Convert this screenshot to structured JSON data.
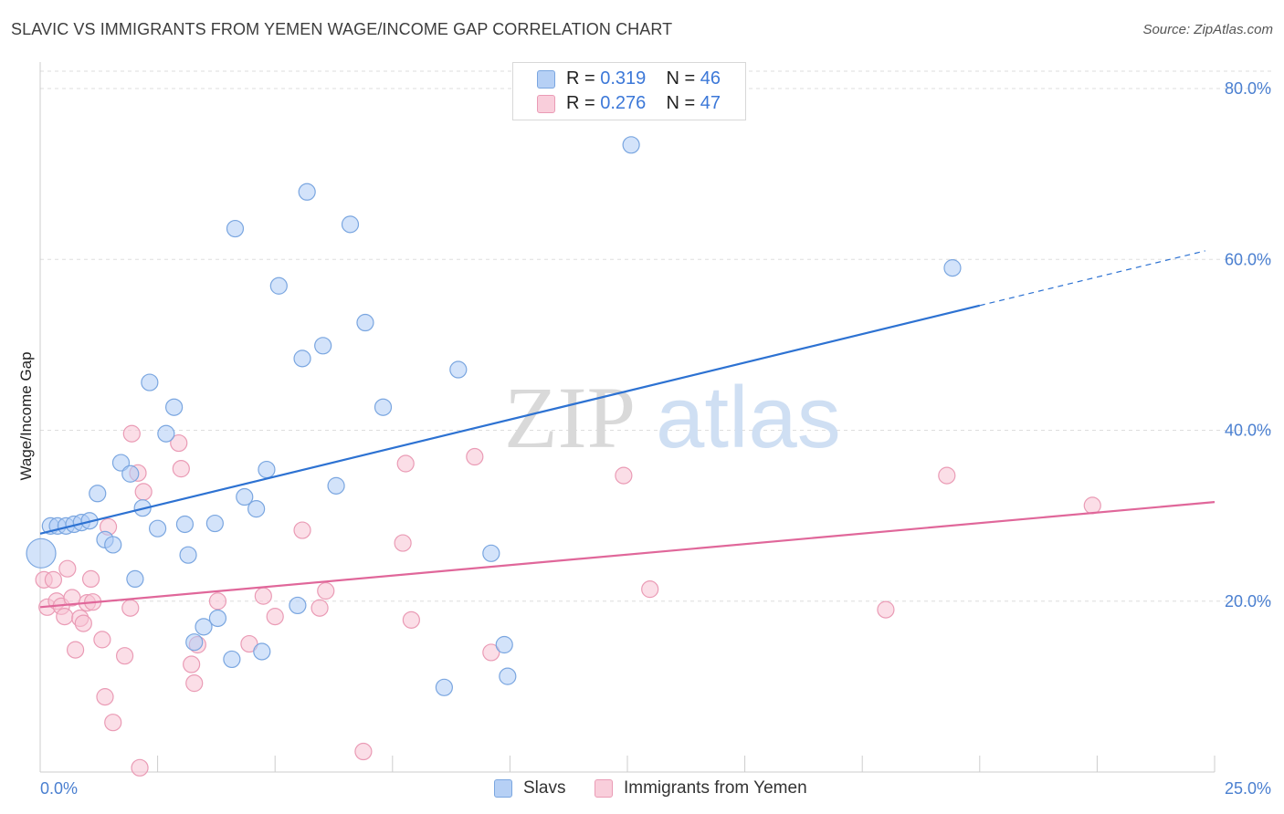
{
  "title": "SLAVIC VS IMMIGRANTS FROM YEMEN WAGE/INCOME GAP CORRELATION CHART",
  "source": "Source: ZipAtlas.com",
  "watermark": {
    "zip": "ZIP",
    "atlas": "atlas"
  },
  "colors": {
    "slavs_fill": "#aeccf5",
    "slavs_stroke": "#7aa6e0",
    "slavs_line": "#2d72d2",
    "yemen_fill": "#f7c3d3",
    "yemen_stroke": "#ea9bb5",
    "yemen_line": "#e0679a",
    "tick_text": "#4a7fd0",
    "grid": "#dddddd"
  },
  "legend_top": {
    "row1": {
      "r_label": "R =",
      "r_value": "0.319",
      "n_label": "N =",
      "n_value": "46"
    },
    "row2": {
      "r_label": "R =",
      "r_value": "0.276",
      "n_label": "N =",
      "n_value": "47"
    }
  },
  "legend_bottom": {
    "series1": "Slavs",
    "series2": "Immigrants from Yemen"
  },
  "chart_data": {
    "type": "scatter",
    "title": "SLAVIC VS IMMIGRANTS FROM YEMEN WAGE/INCOME GAP CORRELATION CHART",
    "xlabel": "",
    "ylabel": "Wage/Income Gap",
    "xlim": [
      0,
      25
    ],
    "ylim": [
      0,
      83
    ],
    "x_tick_labels": [
      "0.0%",
      "25.0%"
    ],
    "y_ticks": [
      20,
      40,
      60,
      80
    ],
    "y_tick_labels": [
      "20.0%",
      "40.0%",
      "60.0%",
      "80.0%"
    ],
    "grid": "horizontal dashed",
    "legend_position": "top-center and bottom",
    "series": [
      {
        "name": "Slavs",
        "r": 0.319,
        "n": 46,
        "trend": {
          "x0": 0,
          "y0": 27.9,
          "x1": 20,
          "y1": 54.6,
          "dashed_to_x": 24.8,
          "dashed_to_y": 61.0
        },
        "points": [
          [
            0.02,
            25.6,
            16
          ],
          [
            0.22,
            28.8,
            9
          ],
          [
            0.37,
            28.8,
            9
          ],
          [
            0.55,
            28.8,
            9
          ],
          [
            0.72,
            29.0,
            9
          ],
          [
            0.88,
            29.2,
            9
          ],
          [
            1.05,
            29.4,
            9
          ],
          [
            1.22,
            32.6,
            9
          ],
          [
            1.38,
            27.2,
            9
          ],
          [
            1.55,
            26.6,
            9
          ],
          [
            1.72,
            36.2,
            9
          ],
          [
            1.92,
            34.9,
            9
          ],
          [
            2.02,
            22.6,
            9
          ],
          [
            2.18,
            30.9,
            9
          ],
          [
            2.33,
            45.6,
            9
          ],
          [
            2.5,
            28.5,
            9
          ],
          [
            2.68,
            39.6,
            9
          ],
          [
            2.85,
            42.7,
            9
          ],
          [
            3.08,
            29.0,
            9
          ],
          [
            3.15,
            25.4,
            9
          ],
          [
            3.28,
            15.2,
            9
          ],
          [
            3.48,
            17.0,
            9
          ],
          [
            3.72,
            29.1,
            9
          ],
          [
            3.78,
            18.0,
            9
          ],
          [
            4.08,
            13.2,
            9
          ],
          [
            4.15,
            63.6,
            9
          ],
          [
            4.35,
            32.2,
            9
          ],
          [
            4.6,
            30.8,
            9
          ],
          [
            4.72,
            14.1,
            9
          ],
          [
            4.82,
            35.4,
            9
          ],
          [
            5.08,
            56.9,
            9
          ],
          [
            5.48,
            19.5,
            9
          ],
          [
            5.58,
            48.4,
            9
          ],
          [
            5.68,
            67.9,
            9
          ],
          [
            6.02,
            49.9,
            9
          ],
          [
            6.3,
            33.5,
            9
          ],
          [
            6.6,
            64.1,
            9
          ],
          [
            6.92,
            52.6,
            9
          ],
          [
            7.3,
            42.7,
            9
          ],
          [
            8.6,
            9.9,
            9
          ],
          [
            8.9,
            47.1,
            9
          ],
          [
            9.6,
            25.6,
            9
          ],
          [
            9.88,
            14.9,
            9
          ],
          [
            9.95,
            11.2,
            9
          ],
          [
            12.58,
            73.4,
            9
          ],
          [
            19.42,
            59.0,
            9
          ]
        ]
      },
      {
        "name": "Immigrants from Yemen",
        "r": 0.276,
        "n": 47,
        "trend": {
          "x0": 0,
          "y0": 19.3,
          "x1": 25,
          "y1": 31.6
        },
        "points": [
          [
            0.08,
            22.5,
            9
          ],
          [
            0.15,
            19.3,
            9
          ],
          [
            0.28,
            22.5,
            9
          ],
          [
            0.35,
            20.0,
            9
          ],
          [
            0.45,
            19.4,
            9
          ],
          [
            0.52,
            18.2,
            9
          ],
          [
            0.58,
            23.8,
            9
          ],
          [
            0.68,
            20.4,
            9
          ],
          [
            0.75,
            14.3,
            9
          ],
          [
            0.85,
            18.0,
            9
          ],
          [
            0.92,
            17.4,
            9
          ],
          [
            1.0,
            19.8,
            9
          ],
          [
            1.08,
            22.6,
            9
          ],
          [
            1.12,
            19.9,
            9
          ],
          [
            1.32,
            15.5,
            9
          ],
          [
            1.38,
            8.8,
            9
          ],
          [
            1.45,
            28.7,
            9
          ],
          [
            1.55,
            5.8,
            9
          ],
          [
            1.8,
            13.6,
            9
          ],
          [
            1.92,
            19.2,
            9
          ],
          [
            1.95,
            39.6,
            9
          ],
          [
            2.08,
            35.0,
            9
          ],
          [
            2.12,
            0.5,
            9
          ],
          [
            2.2,
            32.8,
            9
          ],
          [
            2.95,
            38.5,
            9
          ],
          [
            3.0,
            35.5,
            9
          ],
          [
            3.22,
            12.6,
            9
          ],
          [
            3.28,
            10.4,
            9
          ],
          [
            3.35,
            14.9,
            9
          ],
          [
            3.78,
            20.0,
            9
          ],
          [
            4.45,
            15.0,
            9
          ],
          [
            4.75,
            20.6,
            9
          ],
          [
            5.0,
            18.2,
            9
          ],
          [
            5.58,
            28.3,
            9
          ],
          [
            5.95,
            19.2,
            9
          ],
          [
            6.08,
            21.2,
            9
          ],
          [
            6.88,
            2.4,
            9
          ],
          [
            7.72,
            26.8,
            9
          ],
          [
            7.78,
            36.1,
            9
          ],
          [
            7.9,
            17.8,
            9
          ],
          [
            9.25,
            36.9,
            9
          ],
          [
            9.6,
            14.0,
            9
          ],
          [
            12.42,
            34.7,
            9
          ],
          [
            12.98,
            21.4,
            9
          ],
          [
            18.0,
            19.0,
            9
          ],
          [
            19.3,
            34.7,
            9
          ],
          [
            22.4,
            31.2,
            9
          ]
        ]
      }
    ]
  }
}
